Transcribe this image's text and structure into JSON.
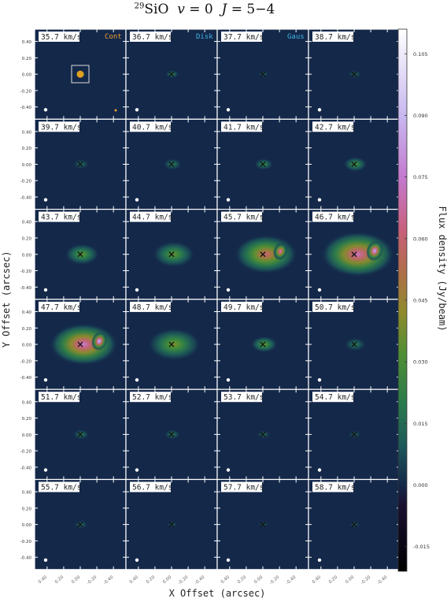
{
  "title": {
    "iso_mass": "29",
    "species": "SiO",
    "v_label": "v",
    "v_value": "= 0",
    "j_label": "J",
    "j_value": "= 5−4"
  },
  "chart_data": {
    "type": "heatmap",
    "layout": {
      "rows": 6,
      "cols": 4
    },
    "channels": [
      "35.7 km/s",
      "36.7 km/s",
      "37.7 km/s",
      "38.7 km/s",
      "39.7 km/s",
      "40.7 km/s",
      "41.7 km/s",
      "42.7 km/s",
      "43.7 km/s",
      "44.7 km/s",
      "45.7 km/s",
      "46.7 km/s",
      "47.7 km/s",
      "48.7 km/s",
      "49.7 km/s",
      "50.7 km/s",
      "51.7 km/s",
      "52.7 km/s",
      "53.7 km/s",
      "54.7 km/s",
      "55.7 km/s",
      "56.7 km/s",
      "57.7 km/s",
      "58.7 km/s"
    ],
    "peak_flux": [
      0.02,
      0.022,
      0.012,
      0.013,
      0.015,
      0.02,
      0.025,
      0.03,
      0.035,
      0.035,
      0.06,
      0.072,
      0.075,
      0.04,
      0.035,
      0.02,
      0.02,
      0.018,
      0.015,
      0.012,
      0.015,
      0.012,
      0.01,
      0.012
    ],
    "emission_extent_arcsec": [
      0.04,
      0.05,
      0.04,
      0.05,
      0.06,
      0.07,
      0.07,
      0.09,
      0.13,
      0.16,
      0.24,
      0.28,
      0.26,
      0.2,
      0.1,
      0.08,
      0.06,
      0.06,
      0.05,
      0.05,
      0.05,
      0.04,
      0.04,
      0.04
    ],
    "legend_labels": {
      "cont": "Cont",
      "disk": "Disk",
      "gaus": "Gaus"
    },
    "legend_colors": {
      "cont": "#f0a030",
      "disk": "#40b0e0",
      "gaus": "#40b0e0"
    },
    "y_ticks": [
      "0.40",
      "0.20",
      "0.00",
      "-0.20",
      "-0.40"
    ],
    "x_ticks": [
      "0.40",
      "0.20",
      "0.00",
      "-0.20",
      "-0.40"
    ],
    "xlabel": "X Offset (arcsec)",
    "ylabel": "Y Offset (arcsec)",
    "xlim": [
      0.55,
      -0.55
    ],
    "ylim": [
      -0.55,
      0.55
    ],
    "colorbar": {
      "label": "Flux density (Jy/beam)",
      "ticks": [
        "0.105",
        "0.090",
        "0.075",
        "0.060",
        "0.045",
        "0.030",
        "0.015",
        "0.000",
        "-0.015"
      ],
      "tick_values": [
        0.105,
        0.09,
        0.075,
        0.06,
        0.045,
        0.03,
        0.015,
        0.0,
        -0.015
      ],
      "range": [
        -0.021,
        0.111
      ]
    },
    "colors": {
      "background": "#14284a",
      "marker": "#111111",
      "beam": "#ffffff",
      "box": "#dddddd"
    }
  }
}
